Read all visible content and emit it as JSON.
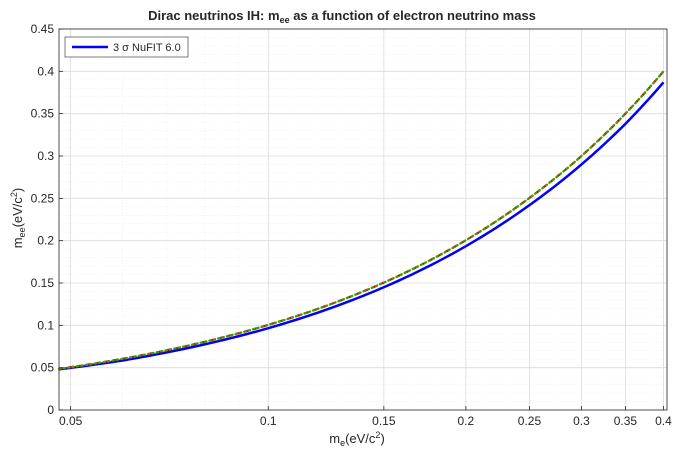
{
  "chart_data": {
    "type": "line",
    "title_prefix": "Dirac neutrinos IH: m",
    "title_sub": "ee",
    "title_suffix": " as a function of electron neutrino mass",
    "xlabel_main": "m",
    "xlabel_sub": "e",
    "xlabel_unit": "(eV/c",
    "xlabel_sup": "2",
    "xlabel_close": ")",
    "ylabel_main": "m",
    "ylabel_sub": "ee",
    "ylabel_unit": "(eV/c",
    "ylabel_sup": "2",
    "ylabel_close": ")",
    "x_scale": "log",
    "xlim": [
      0.048,
      0.405
    ],
    "ylim": [
      0,
      0.45
    ],
    "x_ticks": [
      0.05,
      0.1,
      0.15,
      0.2,
      0.25,
      0.3,
      0.35,
      0.4
    ],
    "x_tick_labels": [
      "0.05",
      "0.1",
      "0.15",
      "0.2",
      "0.25",
      "0.3",
      "0.35",
      "0.4"
    ],
    "y_ticks": [
      0,
      0.05,
      0.1,
      0.15,
      0.2,
      0.25,
      0.3,
      0.35,
      0.4,
      0.45
    ],
    "y_tick_labels": [
      "0",
      "0.05",
      "0.1",
      "0.15",
      "0.2",
      "0.25",
      "0.3",
      "0.35",
      "0.4",
      "0.45"
    ],
    "grid": true,
    "legend_position": "top-left",
    "series": [
      {
        "name": "3 σ NuFIT 6.0",
        "color": "#0000ff",
        "style": "solid",
        "x": [
          0.048,
          0.06,
          0.08,
          0.1,
          0.12,
          0.15,
          0.2,
          0.25,
          0.3,
          0.35,
          0.4
        ],
        "y": [
          0.048,
          0.0585,
          0.0775,
          0.0966,
          0.116,
          0.145,
          0.1935,
          0.242,
          0.29,
          0.338,
          0.387
        ]
      },
      {
        "color": "#cc0000",
        "style": "dashed",
        "x": [
          0.048,
          0.06,
          0.08,
          0.1,
          0.12,
          0.15,
          0.2,
          0.25,
          0.3,
          0.35,
          0.4
        ],
        "y": [
          0.0485,
          0.0605,
          0.0805,
          0.1005,
          0.1205,
          0.1505,
          0.2005,
          0.2505,
          0.3,
          0.35,
          0.4
        ]
      },
      {
        "color": "#4a9a00",
        "style": "dotted",
        "x": [
          0.048,
          0.06,
          0.08,
          0.1,
          0.12,
          0.15,
          0.2,
          0.25,
          0.3,
          0.35,
          0.4
        ],
        "y": [
          0.0485,
          0.0605,
          0.0805,
          0.1005,
          0.1205,
          0.1505,
          0.2005,
          0.2505,
          0.3,
          0.35,
          0.4
        ]
      }
    ]
  }
}
